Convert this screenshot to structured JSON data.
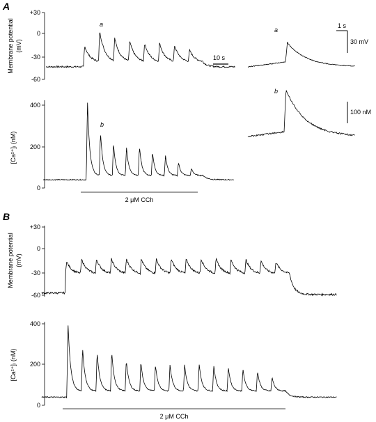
{
  "panels": [
    {
      "letter": "A",
      "vm_axis": {
        "label": "Membrane potential\n(mV)",
        "ticks": [
          "+30",
          "0",
          "-30",
          "-60"
        ]
      },
      "ca_axis": {
        "label": "[Ca²⁺]ᵢ (nM)",
        "ticks": [
          "400",
          "200",
          "0"
        ]
      },
      "vm_annotation": "a",
      "ca_annotation": "b",
      "time_scale": "10 s",
      "drug_label": "2 μM CCh"
    },
    {
      "letter": "B",
      "vm_axis": {
        "label": "Membrane potential\n(mV)",
        "ticks": [
          "+30",
          "0",
          "-30",
          "-60"
        ]
      },
      "ca_axis": {
        "label": "[Ca²⁺]ᵢ (nM)",
        "ticks": [
          "400",
          "200",
          "0"
        ]
      },
      "drug_label": "2 μM CCh"
    }
  ],
  "insets": {
    "a_label": "a",
    "b_label": "b",
    "time_scale": "1 s",
    "vm_scale": "30 mV",
    "ca_scale": "100 nM"
  },
  "chart_data": [
    {
      "type": "line",
      "panel": "A",
      "ylabel": "Membrane potential (mV)",
      "ylim": [
        -60,
        30
      ],
      "series": [
        {
          "baseline": -43,
          "plateau": -38,
          "spike_peaks": [
            -15,
            5,
            -4,
            -8,
            -11,
            -11,
            -14,
            -20
          ],
          "trough_between_spikes": -37
        }
      ]
    },
    {
      "type": "line",
      "panel": "A",
      "ylabel": "[Ca²⁺]ᵢ (nM)",
      "ylim": [
        0,
        450
      ],
      "series": [
        {
          "baseline": 40,
          "spike_peaks": [
            420,
            275,
            220,
            200,
            205,
            175,
            160,
            125,
            95
          ],
          "trough_between_spikes": 60
        }
      ]
    },
    {
      "type": "line",
      "panel": "B",
      "ylabel": "Membrane potential (mV)",
      "ylim": [
        -60,
        30
      ],
      "series": [
        {
          "baseline": -57,
          "spike_peaks": [
            -15,
            -12,
            -12,
            -12,
            -12,
            -12,
            -12,
            -12,
            -12,
            -12,
            -12,
            -13,
            -13,
            -14,
            -16
          ],
          "trough_between_spikes": -32,
          "recovery": -59
        }
      ]
    },
    {
      "type": "line",
      "panel": "B",
      "ylabel": "[Ca²⁺]ᵢ (nM)",
      "ylim": [
        0,
        450
      ],
      "series": [
        {
          "baseline": 40,
          "spike_peaks": [
            410,
            285,
            265,
            265,
            225,
            215,
            200,
            200,
            200,
            205,
            200,
            190,
            180,
            170,
            140
          ],
          "trough_between_spikes": 70
        }
      ]
    }
  ]
}
